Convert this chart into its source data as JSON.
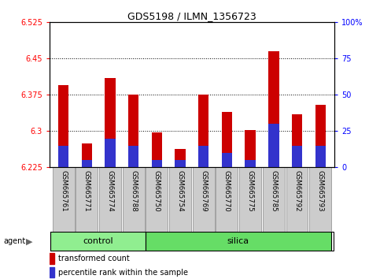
{
  "title": "GDS5198 / ILMN_1356723",
  "samples": [
    "GSM665761",
    "GSM665771",
    "GSM665774",
    "GSM665788",
    "GSM665750",
    "GSM665754",
    "GSM665769",
    "GSM665770",
    "GSM665775",
    "GSM665785",
    "GSM665792",
    "GSM665793"
  ],
  "groups": [
    "control",
    "control",
    "control",
    "control",
    "silica",
    "silica",
    "silica",
    "silica",
    "silica",
    "silica",
    "silica",
    "silica"
  ],
  "transformed_count": [
    6.395,
    6.275,
    6.41,
    6.375,
    6.298,
    6.263,
    6.375,
    6.34,
    6.302,
    6.465,
    6.335,
    6.355
  ],
  "percentile_rank_pct": [
    15,
    5,
    20,
    15,
    5,
    5,
    15,
    10,
    5,
    30,
    15,
    15
  ],
  "ylim": [
    6.225,
    6.525
  ],
  "yticks": [
    6.225,
    6.3,
    6.375,
    6.45,
    6.525
  ],
  "right_ytick_pcts": [
    0,
    25,
    50,
    75,
    100
  ],
  "right_ytick_labels": [
    "0",
    "25",
    "50",
    "75",
    "100%"
  ],
  "bar_color": "#cc0000",
  "blue_color": "#3333cc",
  "bar_width": 0.45,
  "control_color": "#90ee90",
  "silica_color": "#66dd66",
  "baseline": 6.225,
  "yrange": 0.3,
  "grid_dotted_at": [
    6.3,
    6.375,
    6.45
  ],
  "n_control": 4,
  "n_silica": 8
}
